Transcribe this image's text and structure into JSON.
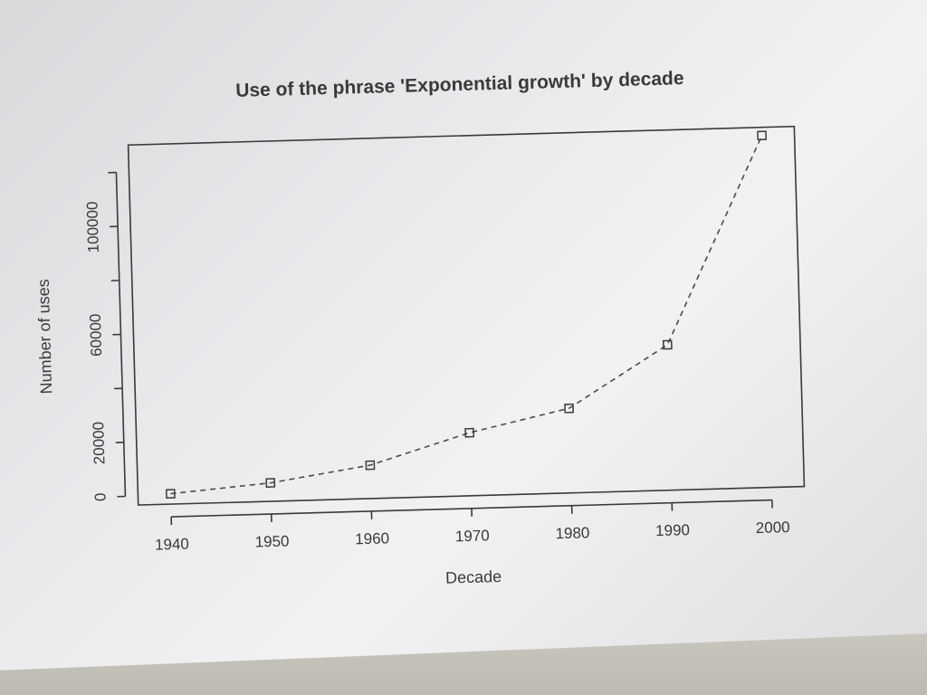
{
  "chart_data": {
    "type": "line",
    "title": "Use of the phrase 'Exponential growth' by decade",
    "xlabel": "Decade",
    "ylabel": "Number of uses",
    "x": [
      1940,
      1950,
      1960,
      1970,
      1980,
      1990,
      2000
    ],
    "series": [
      {
        "values": [
          500,
          3500,
          9000,
          20000,
          28000,
          50500,
          127000
        ]
      }
    ],
    "x_ticks": [
      "1940",
      "1950",
      "1960",
      "1970",
      "1980",
      "1990",
      "2000"
    ],
    "y_ticks": [
      "0",
      "20000",
      "60000",
      "100000"
    ],
    "xlim": [
      1940,
      2000
    ],
    "ylim": [
      0,
      125000
    ],
    "line_style": "dashed",
    "marker": "square",
    "grid": false,
    "colors": {
      "line": "#4a4a4c",
      "axis": "#3a3a3c"
    }
  }
}
